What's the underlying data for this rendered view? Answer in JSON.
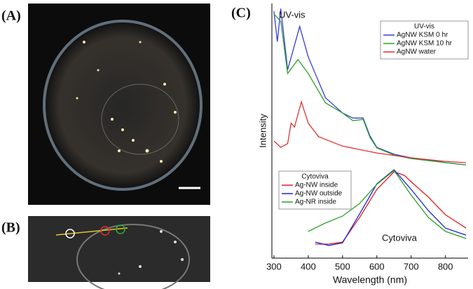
{
  "panels": {
    "a": "(A)",
    "b": "(B)",
    "c": "(C)"
  },
  "chart_data": {
    "type": "line",
    "xlabel": "Wavelength (nm)",
    "ylabel": "Intensity",
    "xlim": [
      294,
      866
    ],
    "xticks": [
      300,
      400,
      500,
      600,
      700,
      800
    ],
    "ylim": [
      0,
      100
    ],
    "groups": [
      {
        "title": "UV-vis",
        "label": "UV-vis",
        "series": [
          {
            "name": "AgNW KSM 0 hr",
            "color": "#3b3bd6",
            "x": [
              300,
              310,
              320,
              340,
              375,
              400,
              450,
              500,
              530,
              560,
              580,
              600,
              650,
              700,
              750,
              800,
              860
            ],
            "values": [
              97,
              85,
              98,
              74,
              91,
              79,
              63,
              57,
              55,
              55,
              48,
              43.5,
              40.8,
              39.4,
              38.6,
              37.5,
              36.6
            ]
          },
          {
            "name": "AgNW KSM 10 hr",
            "color": "#2ca02c",
            "x": [
              300,
              320,
              340,
              370,
              400,
              450,
              500,
              530,
              560,
              580,
              600,
              650,
              700,
              750,
              800,
              860
            ],
            "values": [
              95.9,
              93,
              72.5,
              78,
              72.5,
              61,
              57,
              54,
              54.5,
              47.4,
              43.3,
              40.5,
              39.1,
              38.3,
              37.5,
              36.6
            ]
          },
          {
            "name": "AgNW water",
            "color": "#e03030",
            "x": [
              300,
              320,
              340,
              350,
              360,
              380,
              400,
              430,
              500,
              600,
              700,
              800,
              860
            ],
            "values": [
              46,
              43.5,
              45,
              53,
              51.5,
              61.4,
              53,
              47.7,
              44,
              41.3,
              39.4,
              38,
              37.5
            ]
          }
        ]
      },
      {
        "title": "Cytoviva",
        "label": "Cytoviva",
        "series": [
          {
            "name": "Ag-NW inside",
            "color": "#e02020",
            "x": [
              420,
              460,
              500,
              550,
              600,
              650,
              680,
              700,
              750,
              800,
              850,
              860
            ],
            "values": [
              5.5,
              5.5,
              6.3,
              16,
              27,
              33.9,
              32.5,
              30,
              24,
              17,
              12.7,
              11.8
            ]
          },
          {
            "name": "Ag-NW outside",
            "color": "#2020d0",
            "x": [
              420,
              460,
              500,
              550,
              600,
              650,
              700,
              750,
              800,
              860
            ],
            "values": [
              6.3,
              5,
              6,
              17.4,
              29.2,
              34.7,
              27,
              18.7,
              11.8,
              9
            ]
          },
          {
            "name": "Ag-NR inside",
            "color": "#2ca02c",
            "x": [
              400,
              450,
              500,
              550,
              600,
              650,
              700,
              750,
              800,
              860
            ],
            "values": [
              10.5,
              13.8,
              16.5,
              21.5,
              29,
              34.4,
              24.8,
              16,
              10.5,
              7.7
            ]
          }
        ]
      }
    ]
  }
}
